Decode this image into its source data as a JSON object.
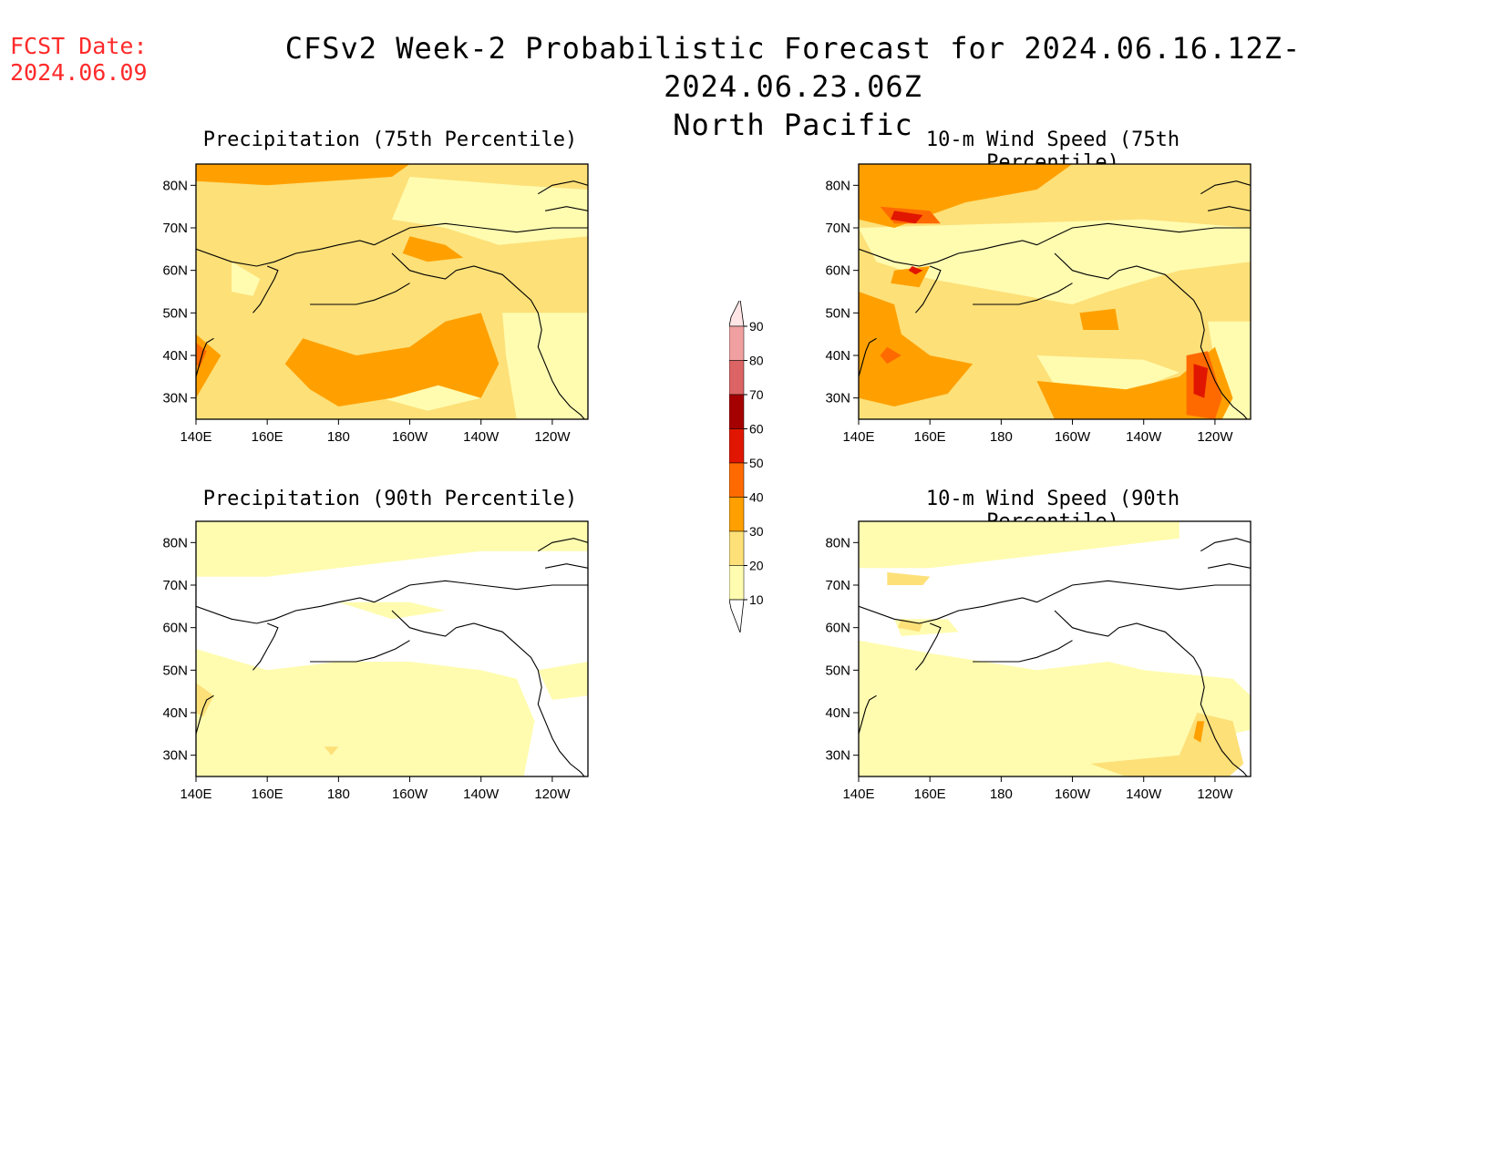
{
  "header": {
    "fcst_label": "FCST Date:",
    "fcst_date": "2024.06.09",
    "title_line1": "CFSv2 Week-2 Probabilistic Forecast for 2024.06.16.12Z-2024.06.23.06Z",
    "title_line2": "North Pacific"
  },
  "axes": {
    "lat_labels": [
      "80N",
      "70N",
      "60N",
      "50N",
      "40N",
      "30N"
    ],
    "lon_labels": [
      "140E",
      "160E",
      "180",
      "160W",
      "140W",
      "120W"
    ]
  },
  "colorbar": {
    "levels": [
      "10",
      "20",
      "30",
      "40",
      "50",
      "60",
      "70",
      "80",
      "90"
    ],
    "colors": [
      "#fffcb0",
      "#fde078",
      "#ffa000",
      "#ff6a00",
      "#e11600",
      "#a50000",
      "#dc6464",
      "#f0a0a0",
      "#ffe5e5"
    ]
  },
  "panels": [
    {
      "id": "precip75",
      "title": "Precipitation (75th Percentile)"
    },
    {
      "id": "wind75",
      "title": "10-m Wind Speed (75th Percentile)"
    },
    {
      "id": "precip90",
      "title": "Precipitation (90th Percentile)"
    },
    {
      "id": "wind90",
      "title": "10-m Wind Speed (90th Percentile)"
    }
  ]
}
